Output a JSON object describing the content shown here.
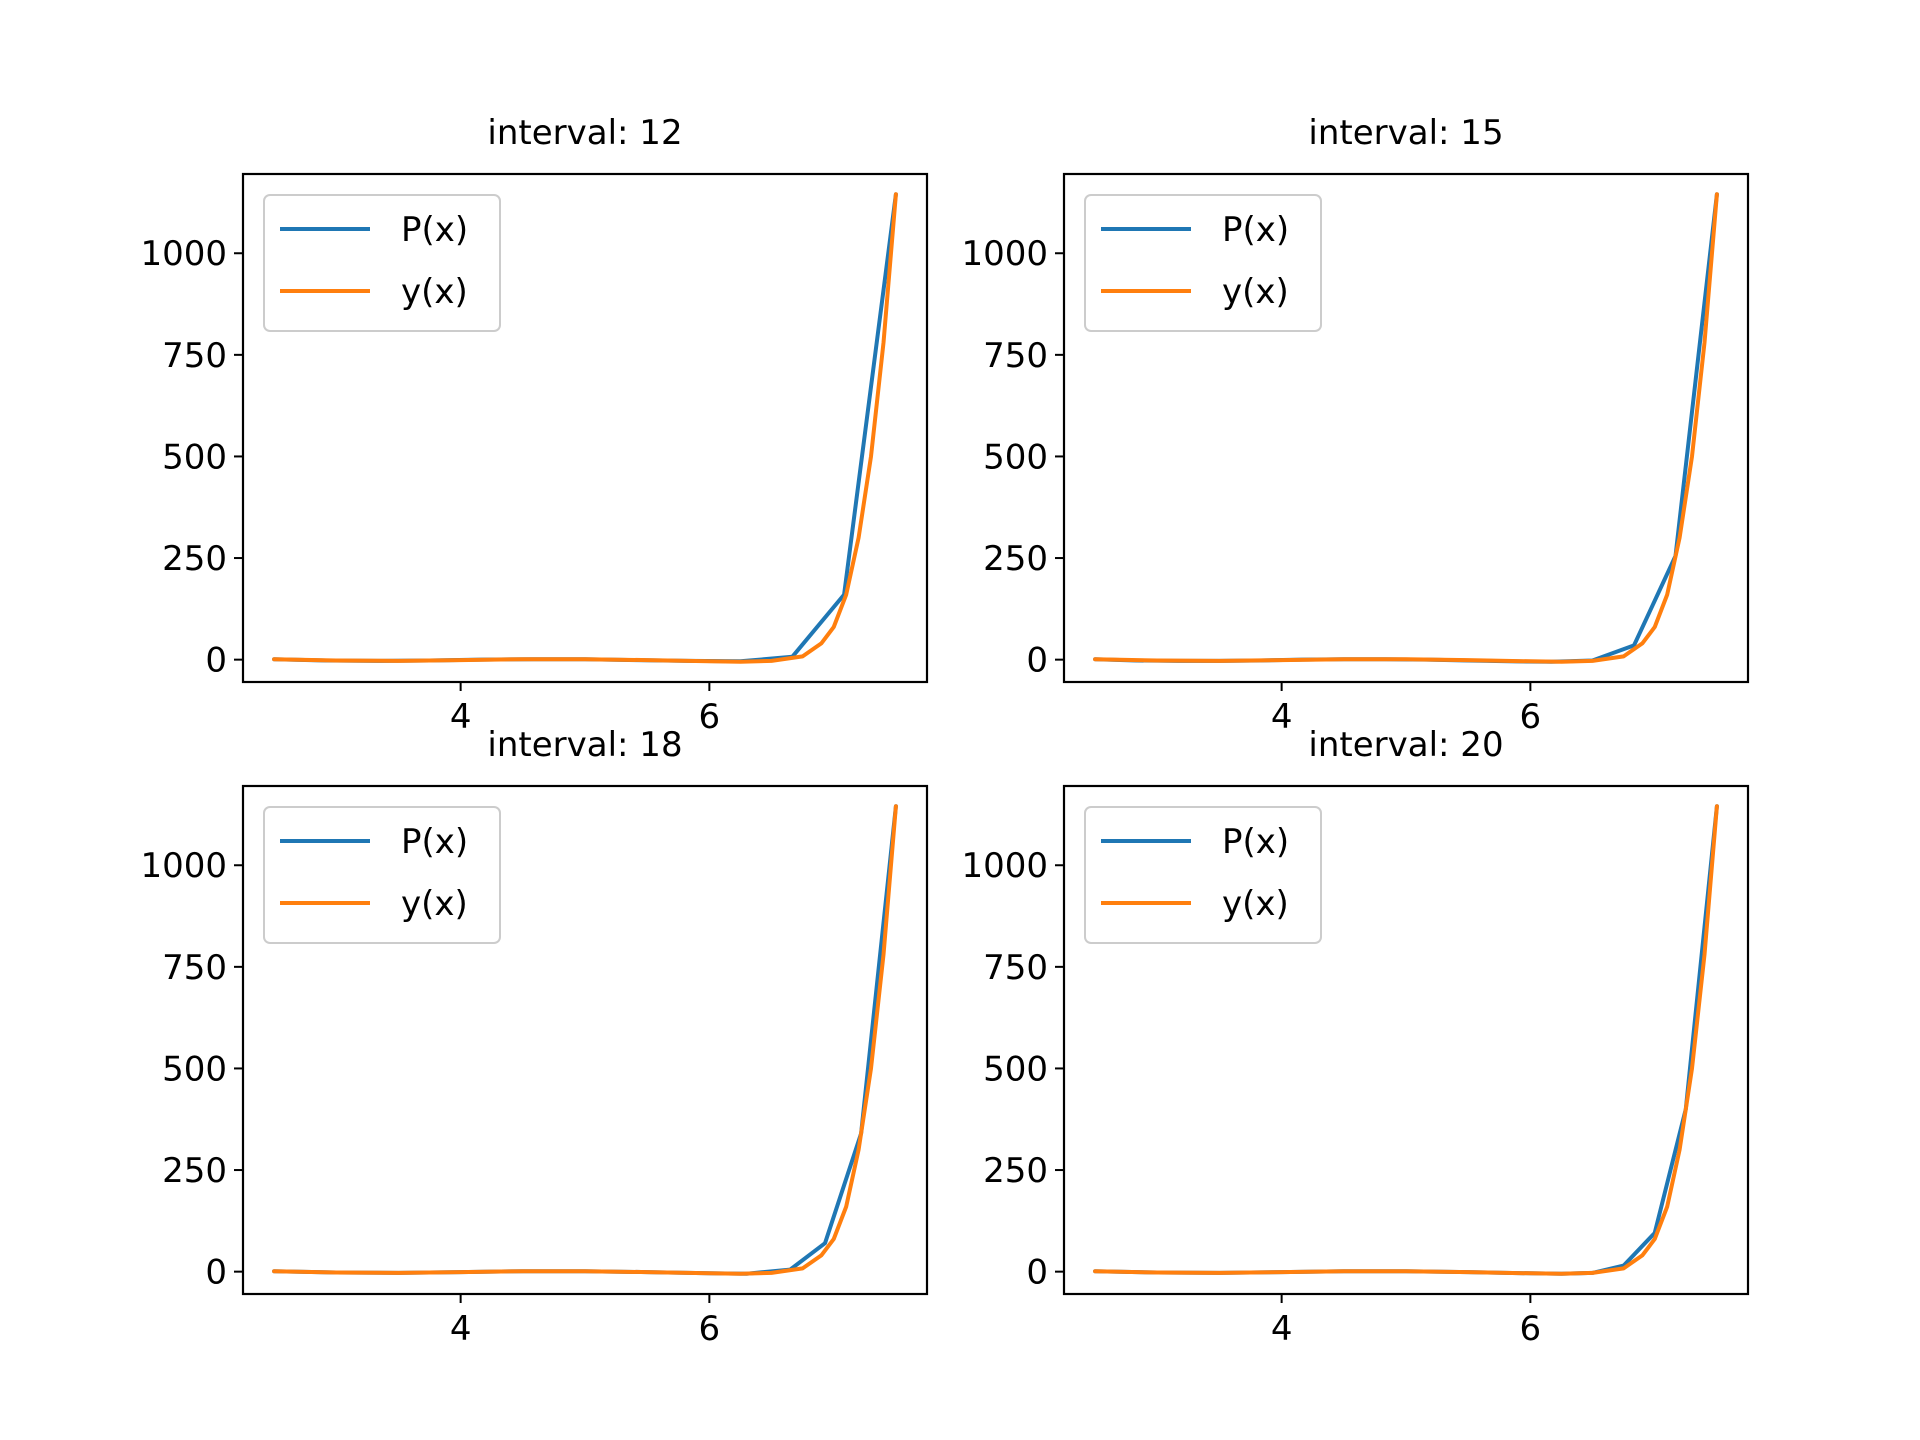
{
  "colors": {
    "P(x)": "#1f77b4",
    "y(x)": "#ff7f0e"
  },
  "chart_data": [
    {
      "type": "line",
      "title": "interval: 12",
      "xlim": [
        2.25,
        7.75
      ],
      "ylim": [
        -55,
        1195
      ],
      "xticks": [
        4,
        6
      ],
      "yticks": [
        0,
        250,
        500,
        750,
        1000
      ],
      "legend": "upper-left",
      "series": [
        {
          "name": "P(x)",
          "x": [
            2.5,
            2.9167,
            3.3333,
            3.75,
            4.1667,
            4.5833,
            5.0,
            5.4167,
            5.8333,
            6.25,
            6.6667,
            7.0833,
            7.5
          ],
          "y": [
            1,
            -2,
            -3,
            -2,
            0,
            1,
            1,
            -1,
            -3,
            -4,
            7,
            160,
            1145
          ]
        },
        {
          "name": "y(x)",
          "x": [
            2.5,
            3.0,
            3.5,
            4.0,
            4.5,
            5.0,
            5.5,
            6.0,
            6.25,
            6.5,
            6.75,
            6.9,
            7.0,
            7.1,
            7.2,
            7.3,
            7.4,
            7.5
          ],
          "y": [
            1,
            -2,
            -3,
            -1,
            1,
            1,
            -1,
            -4,
            -5,
            -3,
            8,
            40,
            80,
            160,
            300,
            500,
            780,
            1145
          ]
        }
      ]
    },
    {
      "type": "line",
      "title": "interval: 15",
      "xlim": [
        2.25,
        7.75
      ],
      "ylim": [
        -55,
        1195
      ],
      "xticks": [
        4,
        6
      ],
      "yticks": [
        0,
        250,
        500,
        750,
        1000
      ],
      "legend": "upper-left",
      "series": [
        {
          "name": "P(x)",
          "x": [
            2.5,
            2.8333,
            3.1667,
            3.5,
            3.8333,
            4.1667,
            4.5,
            4.8333,
            5.1667,
            5.5,
            5.8333,
            6.1667,
            6.5,
            6.8333,
            7.1667,
            7.5
          ],
          "y": [
            1,
            -2,
            -3,
            -3,
            -2,
            0,
            1,
            1,
            0,
            -2,
            -4,
            -5,
            -2,
            35,
            255,
            1145
          ]
        },
        {
          "name": "y(x)",
          "x": [
            2.5,
            3.0,
            3.5,
            4.0,
            4.5,
            5.0,
            5.5,
            6.0,
            6.25,
            6.5,
            6.75,
            6.9,
            7.0,
            7.1,
            7.2,
            7.3,
            7.4,
            7.5
          ],
          "y": [
            1,
            -2,
            -3,
            -1,
            1,
            1,
            -1,
            -4,
            -5,
            -3,
            8,
            40,
            80,
            160,
            300,
            500,
            780,
            1145
          ]
        }
      ]
    },
    {
      "type": "line",
      "title": "interval: 18",
      "xlim": [
        2.25,
        7.75
      ],
      "ylim": [
        -55,
        1195
      ],
      "xticks": [
        4,
        6
      ],
      "yticks": [
        0,
        250,
        500,
        750,
        1000
      ],
      "legend": "upper-left",
      "series": [
        {
          "name": "P(x)",
          "x": [
            2.5,
            3.0,
            3.5,
            4.0,
            4.5,
            5.0,
            5.5,
            6.0,
            6.3,
            6.65,
            6.93,
            7.22,
            7.5
          ],
          "y": [
            1,
            -2,
            -3,
            -1,
            1,
            1,
            -1,
            -4,
            -5,
            5,
            70,
            340,
            1145
          ]
        },
        {
          "name": "y(x)",
          "x": [
            2.5,
            3.0,
            3.5,
            4.0,
            4.5,
            5.0,
            5.5,
            6.0,
            6.25,
            6.5,
            6.75,
            6.9,
            7.0,
            7.1,
            7.2,
            7.3,
            7.4,
            7.5
          ],
          "y": [
            1,
            -2,
            -3,
            -1,
            1,
            1,
            -1,
            -4,
            -5,
            -3,
            8,
            40,
            80,
            160,
            300,
            500,
            780,
            1145
          ]
        }
      ]
    },
    {
      "type": "line",
      "title": "interval: 20",
      "xlim": [
        2.25,
        7.75
      ],
      "ylim": [
        -55,
        1195
      ],
      "xticks": [
        4,
        6
      ],
      "yticks": [
        0,
        250,
        500,
        750,
        1000
      ],
      "legend": "upper-left",
      "series": [
        {
          "name": "P(x)",
          "x": [
            2.5,
            3.0,
            3.5,
            4.0,
            4.5,
            5.0,
            5.5,
            6.0,
            6.25,
            6.5,
            6.75,
            7.0,
            7.25,
            7.5
          ],
          "y": [
            1,
            -2,
            -3,
            -1,
            1,
            1,
            -1,
            -4,
            -5,
            -3,
            15,
            95,
            400,
            1145
          ]
        },
        {
          "name": "y(x)",
          "x": [
            2.5,
            3.0,
            3.5,
            4.0,
            4.5,
            5.0,
            5.5,
            6.0,
            6.25,
            6.5,
            6.75,
            6.9,
            7.0,
            7.1,
            7.2,
            7.3,
            7.4,
            7.5
          ],
          "y": [
            1,
            -2,
            -3,
            -1,
            1,
            1,
            -1,
            -4,
            -5,
            -3,
            8,
            40,
            80,
            160,
            300,
            500,
            780,
            1145
          ]
        }
      ]
    }
  ]
}
